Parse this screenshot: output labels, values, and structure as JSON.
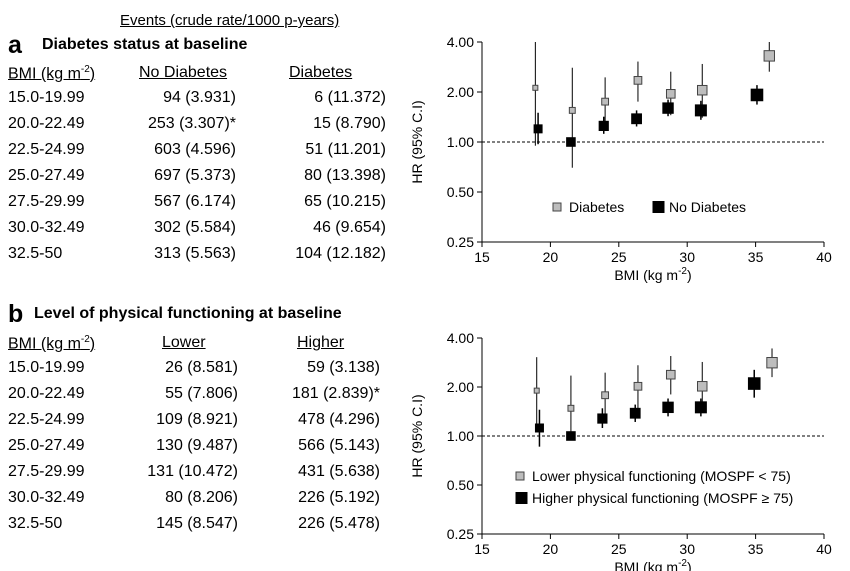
{
  "events_header": "Events  (crude rate/1000 p-years)",
  "panel_a": {
    "letter": "a",
    "title": "Diabetes status at baseline",
    "columns": [
      "BMI  (kg m",
      "No Diabetes",
      "Diabetes"
    ],
    "rows": [
      [
        "15.0-19.99",
        "94 (3.931)",
        "6 (11.372)"
      ],
      [
        "20.0-22.49",
        "253 (3.307)*",
        "15 (8.790)"
      ],
      [
        "22.5-24.99",
        "603 (4.596)",
        "51 (11.201)"
      ],
      [
        "25.0-27.49",
        "697 (5.373)",
        "80 (13.398)"
      ],
      [
        "27.5-29.99",
        "567 (6.174)",
        "65 (10.215)"
      ],
      [
        "30.0-32.49",
        "302 (5.584)",
        "46 (9.654)"
      ],
      [
        "32.5-50",
        "313 (5.563)",
        "104 (12.182)"
      ]
    ]
  },
  "panel_b": {
    "letter": "b",
    "title": "Level of physical functioning at baseline",
    "columns": [
      "BMI  (kg m",
      "Lower",
      "Higher"
    ],
    "rows": [
      [
        "15.0-19.99",
        "26 (8.581)",
        "59 (3.138)"
      ],
      [
        "20.0-22.49",
        "55 (7.806)",
        "181 (2.839)*"
      ],
      [
        "22.5-24.99",
        "109 (8.921)",
        "478 (4.296)"
      ],
      [
        "25.0-27.49",
        "130 (9.487)",
        "566 (5.143)"
      ],
      [
        "27.5-29.99",
        "131 (10.472)",
        "431 (5.638)"
      ],
      [
        "30.0-32.49",
        "80 (8.206)",
        "226 (5.192)"
      ],
      [
        "32.5-50",
        "145 (8.547)",
        "226 (5.478)"
      ]
    ]
  },
  "superscript": "-2",
  "chart_data": [
    {
      "type": "scatter",
      "title": "",
      "xlabel": "BMI (kg m",
      "xlabel_sup": "-2",
      "ylabel": "HR (95% C.I)",
      "xlim": [
        15,
        40
      ],
      "ylim": [
        0.25,
        4.0
      ],
      "yscale": "log",
      "xticks": [
        15,
        20,
        25,
        30,
        35,
        40
      ],
      "yticks": [
        0.25,
        0.5,
        1.0,
        2.0,
        4.0
      ],
      "ytick_labels": [
        "0.25",
        "0.50",
        "1.00",
        "2.00",
        "4.00"
      ],
      "reference_line": 1.0,
      "legend_position": "lower-center",
      "series": [
        {
          "name": "Diabetes",
          "color": "#bdbdbd",
          "marker": "square-hollow",
          "points": [
            {
              "x": 18.9,
              "y": 2.12,
              "lo": 0.95,
              "hi": 4.0
            },
            {
              "x": 21.6,
              "y": 1.55,
              "lo": 0.7,
              "hi": 2.8
            },
            {
              "x": 24.0,
              "y": 1.75,
              "lo": 1.25,
              "hi": 2.45
            },
            {
              "x": 26.4,
              "y": 2.35,
              "lo": 1.75,
              "hi": 3.05
            },
            {
              "x": 28.8,
              "y": 1.95,
              "lo": 1.45,
              "hi": 2.65
            },
            {
              "x": 31.1,
              "y": 2.05,
              "lo": 1.4,
              "hi": 2.95
            },
            {
              "x": 36.0,
              "y": 3.3,
              "lo": 2.65,
              "hi": 4.0
            }
          ]
        },
        {
          "name": "No Diabetes",
          "color": "#000000",
          "marker": "square-filled",
          "points": [
            {
              "x": 19.1,
              "y": 1.2,
              "lo": 0.97,
              "hi": 1.5
            },
            {
              "x": 21.5,
              "y": 1.0
            },
            {
              "x": 23.9,
              "y": 1.25,
              "lo": 1.12,
              "hi": 1.42
            },
            {
              "x": 26.3,
              "y": 1.38,
              "lo": 1.24,
              "hi": 1.55
            },
            {
              "x": 28.6,
              "y": 1.6,
              "lo": 1.43,
              "hi": 1.8
            },
            {
              "x": 31.0,
              "y": 1.55,
              "lo": 1.36,
              "hi": 1.77
            },
            {
              "x": 35.1,
              "y": 1.92,
              "lo": 1.68,
              "hi": 2.2
            }
          ]
        }
      ]
    },
    {
      "type": "scatter",
      "title": "",
      "xlabel": "BMI (kg m",
      "xlabel_sup": "-2",
      "ylabel": "HR (95% C.I)",
      "xlim": [
        15,
        40
      ],
      "ylim": [
        0.25,
        4.0
      ],
      "yscale": "log",
      "xticks": [
        15,
        20,
        25,
        30,
        35,
        40
      ],
      "yticks": [
        0.25,
        0.5,
        1.0,
        2.0,
        4.0
      ],
      "ytick_labels": [
        "0.25",
        "0.50",
        "1.00",
        "2.00",
        "4.00"
      ],
      "reference_line": 1.0,
      "legend_position": "lower-center",
      "series": [
        {
          "name": "Lower physical functioning (MOSPF < 75)",
          "color": "#bdbdbd",
          "marker": "square-hollow",
          "points": [
            {
              "x": 19.0,
              "y": 1.9,
              "lo": 1.1,
              "hi": 3.05
            },
            {
              "x": 21.5,
              "y": 1.48,
              "lo": 0.95,
              "hi": 2.35
            },
            {
              "x": 24.0,
              "y": 1.78,
              "lo": 1.28,
              "hi": 2.45
            },
            {
              "x": 26.4,
              "y": 2.02,
              "lo": 1.48,
              "hi": 2.72
            },
            {
              "x": 28.8,
              "y": 2.38,
              "lo": 1.8,
              "hi": 3.1
            },
            {
              "x": 31.1,
              "y": 2.02,
              "lo": 1.42,
              "hi": 2.85
            },
            {
              "x": 36.2,
              "y": 2.82,
              "lo": 2.3,
              "hi": 3.45
            }
          ]
        },
        {
          "name": "Higher physical functioning (MOSPF ≥ 75)",
          "color": "#000000",
          "marker": "square-filled",
          "points": [
            {
              "x": 19.2,
              "y": 1.12,
              "lo": 0.86,
              "hi": 1.45
            },
            {
              "x": 21.5,
              "y": 1.0
            },
            {
              "x": 23.8,
              "y": 1.28,
              "lo": 1.12,
              "hi": 1.48
            },
            {
              "x": 26.2,
              "y": 1.38,
              "lo": 1.22,
              "hi": 1.56
            },
            {
              "x": 28.6,
              "y": 1.5,
              "lo": 1.32,
              "hi": 1.7
            },
            {
              "x": 31.0,
              "y": 1.5,
              "lo": 1.32,
              "hi": 1.7
            },
            {
              "x": 34.9,
              "y": 2.1,
              "lo": 1.72,
              "hi": 2.55
            }
          ]
        }
      ]
    }
  ]
}
